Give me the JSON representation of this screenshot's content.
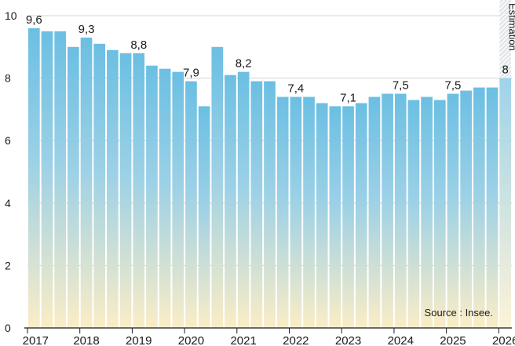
{
  "chart_data": {
    "type": "bar",
    "title": "",
    "xlabel": "",
    "ylabel": "",
    "ylim": [
      0,
      10
    ],
    "yticks": [
      "0",
      "2",
      "4",
      "6",
      "8",
      "10"
    ],
    "year_labels": [
      "2017",
      "2018",
      "2019",
      "2020",
      "2021",
      "2022",
      "2023",
      "2024",
      "2025",
      "2026"
    ],
    "categories": [
      "2017 T1",
      "2017 T2",
      "2017 T3",
      "2017 T4",
      "2018 T1",
      "2018 T2",
      "2018 T3",
      "2018 T4",
      "2019 T1",
      "2019 T2",
      "2019 T3",
      "2019 T4",
      "2020 T1",
      "2020 T2",
      "2020 T3",
      "2020 T4",
      "2021 T1",
      "2021 T2",
      "2021 T3",
      "2021 T4",
      "2022 T1",
      "2022 T2",
      "2022 T3",
      "2022 T4",
      "2023 T1",
      "2023 T2",
      "2023 T3",
      "2023 T4",
      "2024 T1",
      "2024 T2",
      "2024 T3",
      "2024 T4",
      "2025 T1",
      "2025 T2",
      "2025 T3",
      "2025 T4",
      "2026 T1"
    ],
    "values": [
      9.6,
      9.5,
      9.5,
      9.0,
      9.3,
      9.1,
      8.9,
      8.8,
      8.8,
      8.4,
      8.3,
      8.2,
      7.9,
      7.1,
      9.0,
      8.1,
      8.2,
      7.9,
      7.9,
      7.4,
      7.4,
      7.4,
      7.2,
      7.1,
      7.1,
      7.2,
      7.4,
      7.5,
      7.5,
      7.3,
      7.4,
      7.3,
      7.5,
      7.6,
      7.7,
      7.7,
      8.0
    ],
    "data_labels": [
      {
        "index": 0,
        "text": "9,6"
      },
      {
        "index": 4,
        "text": "9,3"
      },
      {
        "index": 8,
        "text": "8,8"
      },
      {
        "index": 12,
        "text": "7,9"
      },
      {
        "index": 16,
        "text": "8,2"
      },
      {
        "index": 20,
        "text": "7,4"
      },
      {
        "index": 24,
        "text": "7,1"
      },
      {
        "index": 28,
        "text": "7,5"
      },
      {
        "index": 32,
        "text": "7,5"
      },
      {
        "index": 36,
        "text": "8"
      }
    ],
    "estimate_index": 36,
    "estimate_label": "Estimation",
    "source": "Source : Insee.",
    "grid": true,
    "colors": {
      "bar_top": "#6bbfe3",
      "bar_bottom": "#fbedc6",
      "grid": "#c9c9c9",
      "text": "#1a1a1a"
    }
  }
}
